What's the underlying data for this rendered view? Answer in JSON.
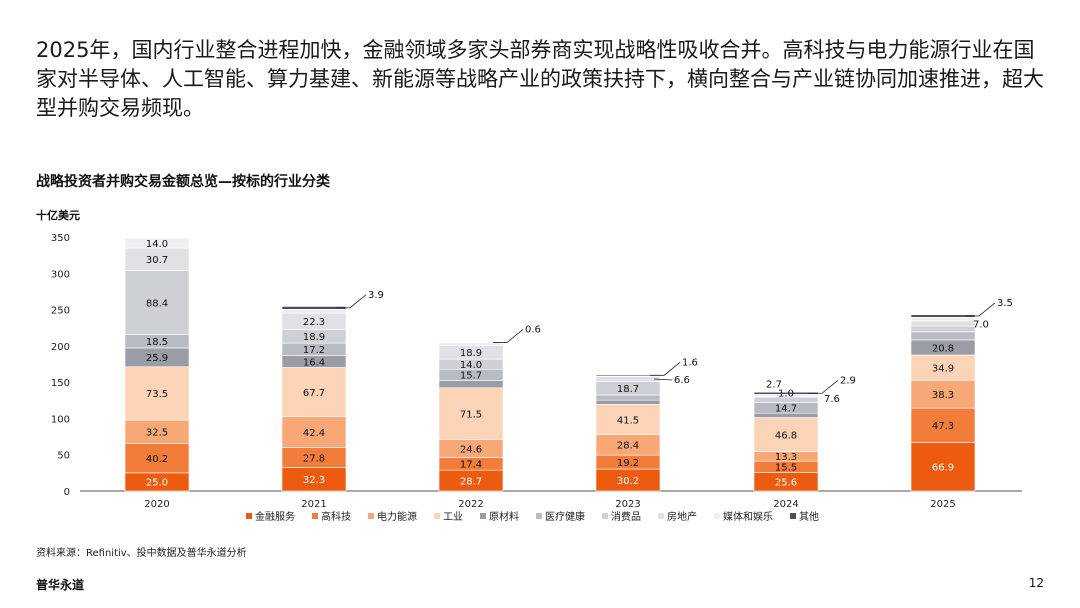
{
  "page": {
    "headline": "2025年，国内行业整合进程加快，金融领域多家头部券商实现战略性吸收合并。高科技与电力能源行业在国家对半导体、人工智能、算力基建、新能源等战略产业的政策扶持下，横向整合与产业链协同加速推进，超大型并购交易频现。",
    "source": "资料来源：Refinitiv、投中数据及普华永道分析",
    "brand": "普华永道",
    "page_number": "12"
  },
  "chart_data": {
    "type": "bar",
    "stacked": true,
    "title": "战略投资者并购交易金额总览—按标的行业分类",
    "ylabel": "十亿美元",
    "xlabel": "",
    "ylim": [
      0,
      350
    ],
    "yticks": [
      0,
      50,
      100,
      150,
      200,
      250,
      300,
      350
    ],
    "grid": false,
    "legend_position": "bottom",
    "categories": [
      "2020",
      "2021",
      "2022",
      "2023",
      "2024",
      "2025"
    ],
    "series": [
      {
        "name": "金融服务",
        "color": "#ed5b10",
        "label_color": "#ffffff",
        "values": [
          25.0,
          32.3,
          28.7,
          30.2,
          25.6,
          66.9
        ]
      },
      {
        "name": "高科技",
        "color": "#f27d3a",
        "label_color": "#111111",
        "values": [
          40.2,
          27.8,
          17.4,
          19.2,
          15.5,
          47.3
        ]
      },
      {
        "name": "电力能源",
        "color": "#f8a877",
        "label_color": "#111111",
        "values": [
          32.5,
          42.4,
          24.6,
          28.4,
          13.3,
          38.3
        ]
      },
      {
        "name": "工业",
        "color": "#fbd3b7",
        "label_color": "#111111",
        "values": [
          73.5,
          67.7,
          71.5,
          41.5,
          46.8,
          34.9
        ]
      },
      {
        "name": "原材料",
        "color": "#9a9da6",
        "label_color": "#111111",
        "values": [
          25.9,
          16.4,
          9.9,
          5.9,
          6.0,
          20.8
        ]
      },
      {
        "name": "医疗健康",
        "color": "#b7bbc2",
        "label_color": "#111111",
        "values": [
          18.5,
          17.2,
          15.7,
          7.1,
          14.7,
          11.1
        ]
      },
      {
        "name": "消费品",
        "color": "#cdd0d5",
        "label_color": "#111111",
        "values": [
          88.4,
          18.9,
          14.0,
          18.7,
          7.6,
          8.1
        ]
      },
      {
        "name": "房地产",
        "color": "#dfe1e4",
        "label_color": "#111111",
        "values": [
          30.7,
          22.3,
          18.9,
          6.6,
          1.0,
          7.0
        ]
      },
      {
        "name": "媒体和娱乐",
        "color": "#eeeff1",
        "label_color": "#111111",
        "values": [
          14.0,
          5.4,
          3.7,
          1.0,
          2.7,
          5.0
        ]
      },
      {
        "name": "其他",
        "color": "#4d5059",
        "label_color": "#111111",
        "values": [
          0.0,
          3.9,
          0.6,
          1.6,
          2.9,
          3.5
        ]
      }
    ],
    "callouts": [
      {
        "category": "2021",
        "series": "其他",
        "text": "3.9"
      },
      {
        "category": "2022",
        "series": "其他",
        "text": "0.6"
      },
      {
        "category": "2023",
        "series": "其他",
        "text": "1.6"
      },
      {
        "category": "2023",
        "series": "房地产",
        "text": "6.6"
      },
      {
        "category": "2024",
        "series": "其他",
        "text": "2.9"
      },
      {
        "category": "2024",
        "series": "消费品",
        "text": "7.6"
      },
      {
        "category": "2024",
        "series": "房地产",
        "text": "1.0"
      },
      {
        "category": "2024",
        "series": "媒体和娱乐",
        "text": "2.7"
      },
      {
        "category": "2025",
        "series": "其他",
        "text": "3.5"
      },
      {
        "category": "2025",
        "series": "房地产",
        "text": "7.0"
      }
    ]
  }
}
